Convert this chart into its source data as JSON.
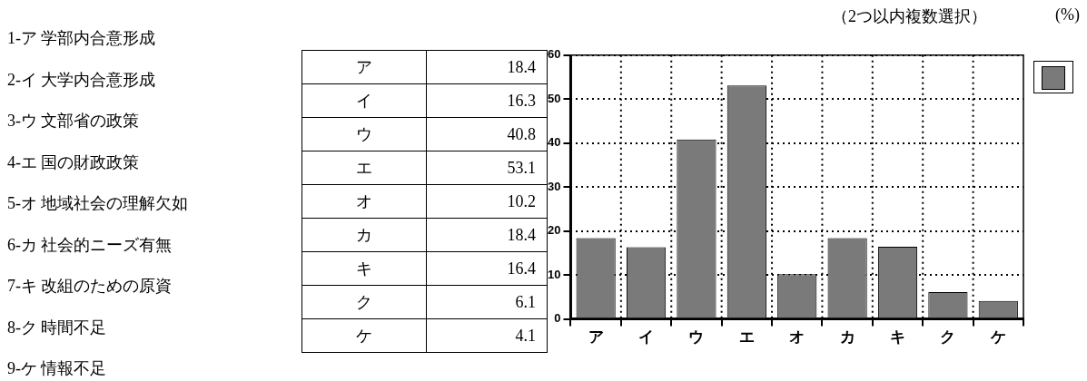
{
  "chart_data": [
    {
      "type": "other",
      "annotations": [
        "ア",
        "18.4",
        "イ",
        "16.3",
        "ウ",
        "40.8",
        "エ",
        "53.1",
        "オ",
        "10.2",
        "カ",
        "18.4",
        "キ",
        "16.4",
        "ク",
        "6.1",
        "ケ",
        "4.1"
      ]
    },
    {
      "type": "bar",
      "categories": [
        "ア",
        "イ",
        "ウ",
        "エ",
        "オ",
        "カ",
        "キ",
        "ク",
        "ケ"
      ],
      "values": [
        18.4,
        16.3,
        40.8,
        53.1,
        10.2,
        18.4,
        16.4,
        6.1,
        4.1
      ],
      "color": "#7a7a7a",
      "ylim": [
        0,
        60
      ],
      "yticks": [
        0,
        10,
        20,
        30,
        40,
        50,
        60
      ],
      "grid": true,
      "annotations": [
        "1-ア 学部内合意形成",
        "2-イ 大学内合意形成",
        "3-ウ 文部省の政策",
        "4-エ 国の財政政策",
        "5-オ 地域社会の理解欠如",
        "6-カ 社会的ニーズ有無",
        "7-キ 改組のための原資",
        "8-ク 時間不足",
        "9-ケ 情報不足",
        "（2つ以内複数選択）",
        "(%)"
      ]
    }
  ]
}
